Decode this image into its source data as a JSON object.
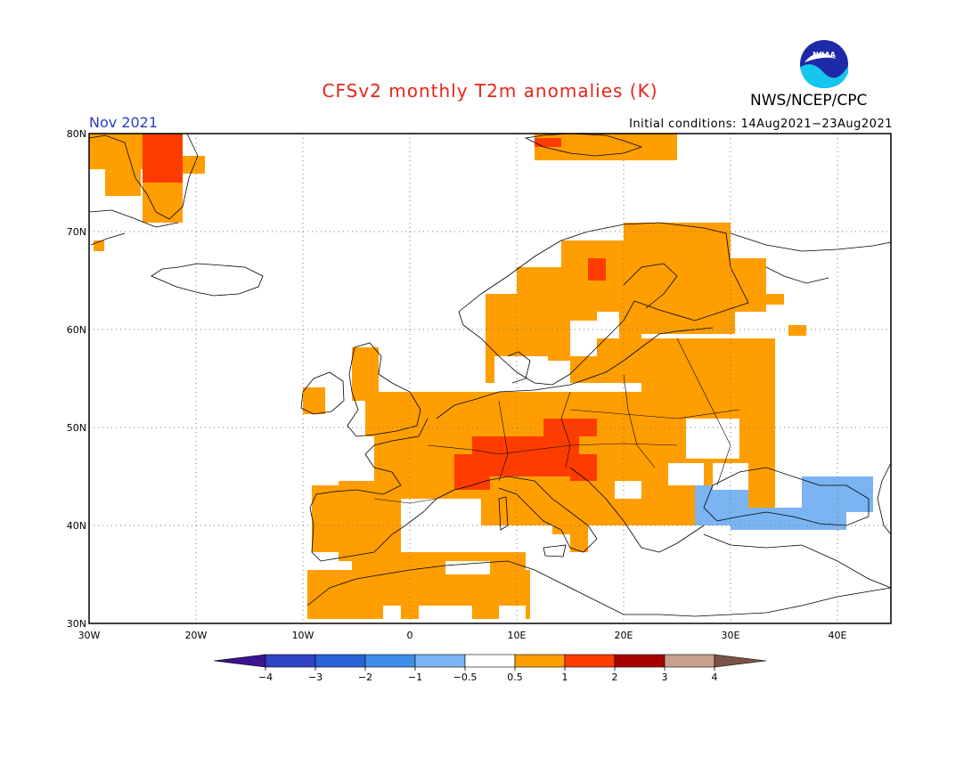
{
  "header": {
    "title": "CFSv2 monthly T2m anomalies (K)",
    "agency": "NWS/NCEP/CPC",
    "logo_text": "NOAA",
    "month": "Nov 2021",
    "initial_conditions": "Initial conditions: 14Aug2021−23Aug2021"
  },
  "map": {
    "lon_range": [
      -30,
      45
    ],
    "lat_range": [
      30,
      80
    ],
    "lon_ticks": [
      "30W",
      "20W",
      "10W",
      "0",
      "10E",
      "20E",
      "30E",
      "40E"
    ],
    "lat_ticks": [
      "30N",
      "40N",
      "50N",
      "60N",
      "70N",
      "80N"
    ],
    "gridlines": true
  },
  "colorbar": {
    "tick_labels": [
      "−4",
      "−3",
      "−2",
      "−1",
      "−0.5",
      "0.5",
      "1",
      "2",
      "3",
      "4"
    ],
    "colors": [
      "#3c1491",
      "#2f43c6",
      "#2a63d8",
      "#3d8ee8",
      "#7bb4f2",
      "#ffffff",
      "#ff9e00",
      "#ff3c00",
      "#a80000",
      "#c8a08c",
      "#7a5448"
    ]
  },
  "anomaly_colors": {
    "cold_light": "#7bb4f2",
    "warm_1": "#ff9e00",
    "warm_2": "#ff3c00"
  }
}
